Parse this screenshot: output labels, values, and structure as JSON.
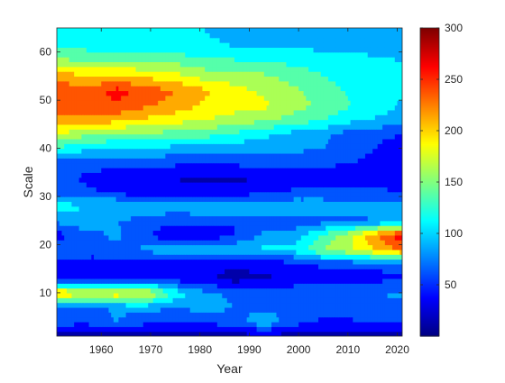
{
  "chart_data": {
    "type": "heatmap",
    "xlabel": "Year",
    "ylabel": "Scale",
    "xlim": [
      1951,
      2021
    ],
    "ylim": [
      1,
      65
    ],
    "xticks": [
      1960,
      1970,
      1980,
      1990,
      2000,
      2010,
      2020
    ],
    "yticks": [
      10,
      20,
      30,
      40,
      50,
      60
    ],
    "colorbar": {
      "min": 0,
      "max": 300,
      "ticks": [
        50,
        100,
        150,
        200,
        250,
        300
      ],
      "colormap": "jet"
    },
    "x": [
      1951,
      1957,
      1963,
      1969,
      1975,
      1981,
      1987,
      1993,
      1999,
      2005,
      2011,
      2017,
      2021
    ],
    "y": [
      1,
      4,
      7,
      10,
      13,
      16,
      19,
      22,
      25,
      28,
      31,
      34,
      37,
      40,
      43,
      46,
      49,
      52,
      55,
      58,
      61,
      64
    ],
    "z": [
      [
        15,
        15,
        15,
        15,
        15,
        15,
        15,
        15,
        15,
        15,
        15,
        15,
        15
      ],
      [
        60,
        55,
        75,
        55,
        45,
        55,
        60,
        95,
        60,
        45,
        45,
        55,
        50
      ],
      [
        60,
        65,
        80,
        85,
        75,
        85,
        75,
        70,
        65,
        65,
        75,
        70,
        65
      ],
      [
        210,
        185,
        195,
        185,
        115,
        80,
        70,
        70,
        70,
        70,
        75,
        75,
        80
      ],
      [
        40,
        30,
        40,
        45,
        40,
        30,
        15,
        20,
        30,
        35,
        40,
        45,
        45
      ],
      [
        35,
        35,
        30,
        35,
        30,
        30,
        30,
        35,
        40,
        55,
        55,
        55,
        60
      ],
      [
        70,
        65,
        70,
        80,
        95,
        100,
        95,
        105,
        110,
        150,
        175,
        210,
        230
      ],
      [
        40,
        65,
        80,
        55,
        25,
        30,
        50,
        80,
        85,
        130,
        175,
        235,
        270
      ],
      [
        80,
        95,
        75,
        65,
        55,
        55,
        50,
        60,
        60,
        65,
        70,
        75,
        75
      ],
      [
        120,
        95,
        105,
        95,
        90,
        100,
        100,
        100,
        95,
        95,
        90,
        85,
        85
      ],
      [
        60,
        55,
        45,
        30,
        30,
        30,
        35,
        45,
        55,
        55,
        55,
        55,
        50
      ],
      [
        60,
        45,
        35,
        25,
        25,
        20,
        20,
        25,
        30,
        35,
        35,
        35,
        25
      ],
      [
        60,
        60,
        60,
        60,
        55,
        50,
        55,
        60,
        60,
        55,
        50,
        35,
        30
      ],
      [
        120,
        105,
        100,
        100,
        90,
        85,
        85,
        85,
        80,
        75,
        65,
        45,
        40
      ],
      [
        175,
        155,
        145,
        145,
        140,
        135,
        120,
        105,
        90,
        80,
        60,
        55,
        50
      ],
      [
        220,
        215,
        210,
        195,
        185,
        175,
        165,
        155,
        140,
        125,
        105,
        95,
        90
      ],
      [
        240,
        250,
        245,
        230,
        215,
        195,
        185,
        180,
        160,
        145,
        125,
        110,
        95
      ],
      [
        245,
        230,
        260,
        240,
        225,
        205,
        185,
        170,
        155,
        135,
        120,
        110,
        105
      ],
      [
        215,
        205,
        205,
        195,
        185,
        165,
        160,
        155,
        140,
        125,
        115,
        110,
        105
      ],
      [
        160,
        150,
        155,
        150,
        145,
        135,
        130,
        125,
        120,
        115,
        110,
        105,
        100
      ],
      [
        120,
        120,
        115,
        115,
        110,
        105,
        100,
        100,
        100,
        95,
        95,
        90,
        90
      ],
      [
        110,
        105,
        105,
        100,
        100,
        100,
        95,
        95,
        95,
        90,
        90,
        90,
        90
      ]
    ]
  }
}
